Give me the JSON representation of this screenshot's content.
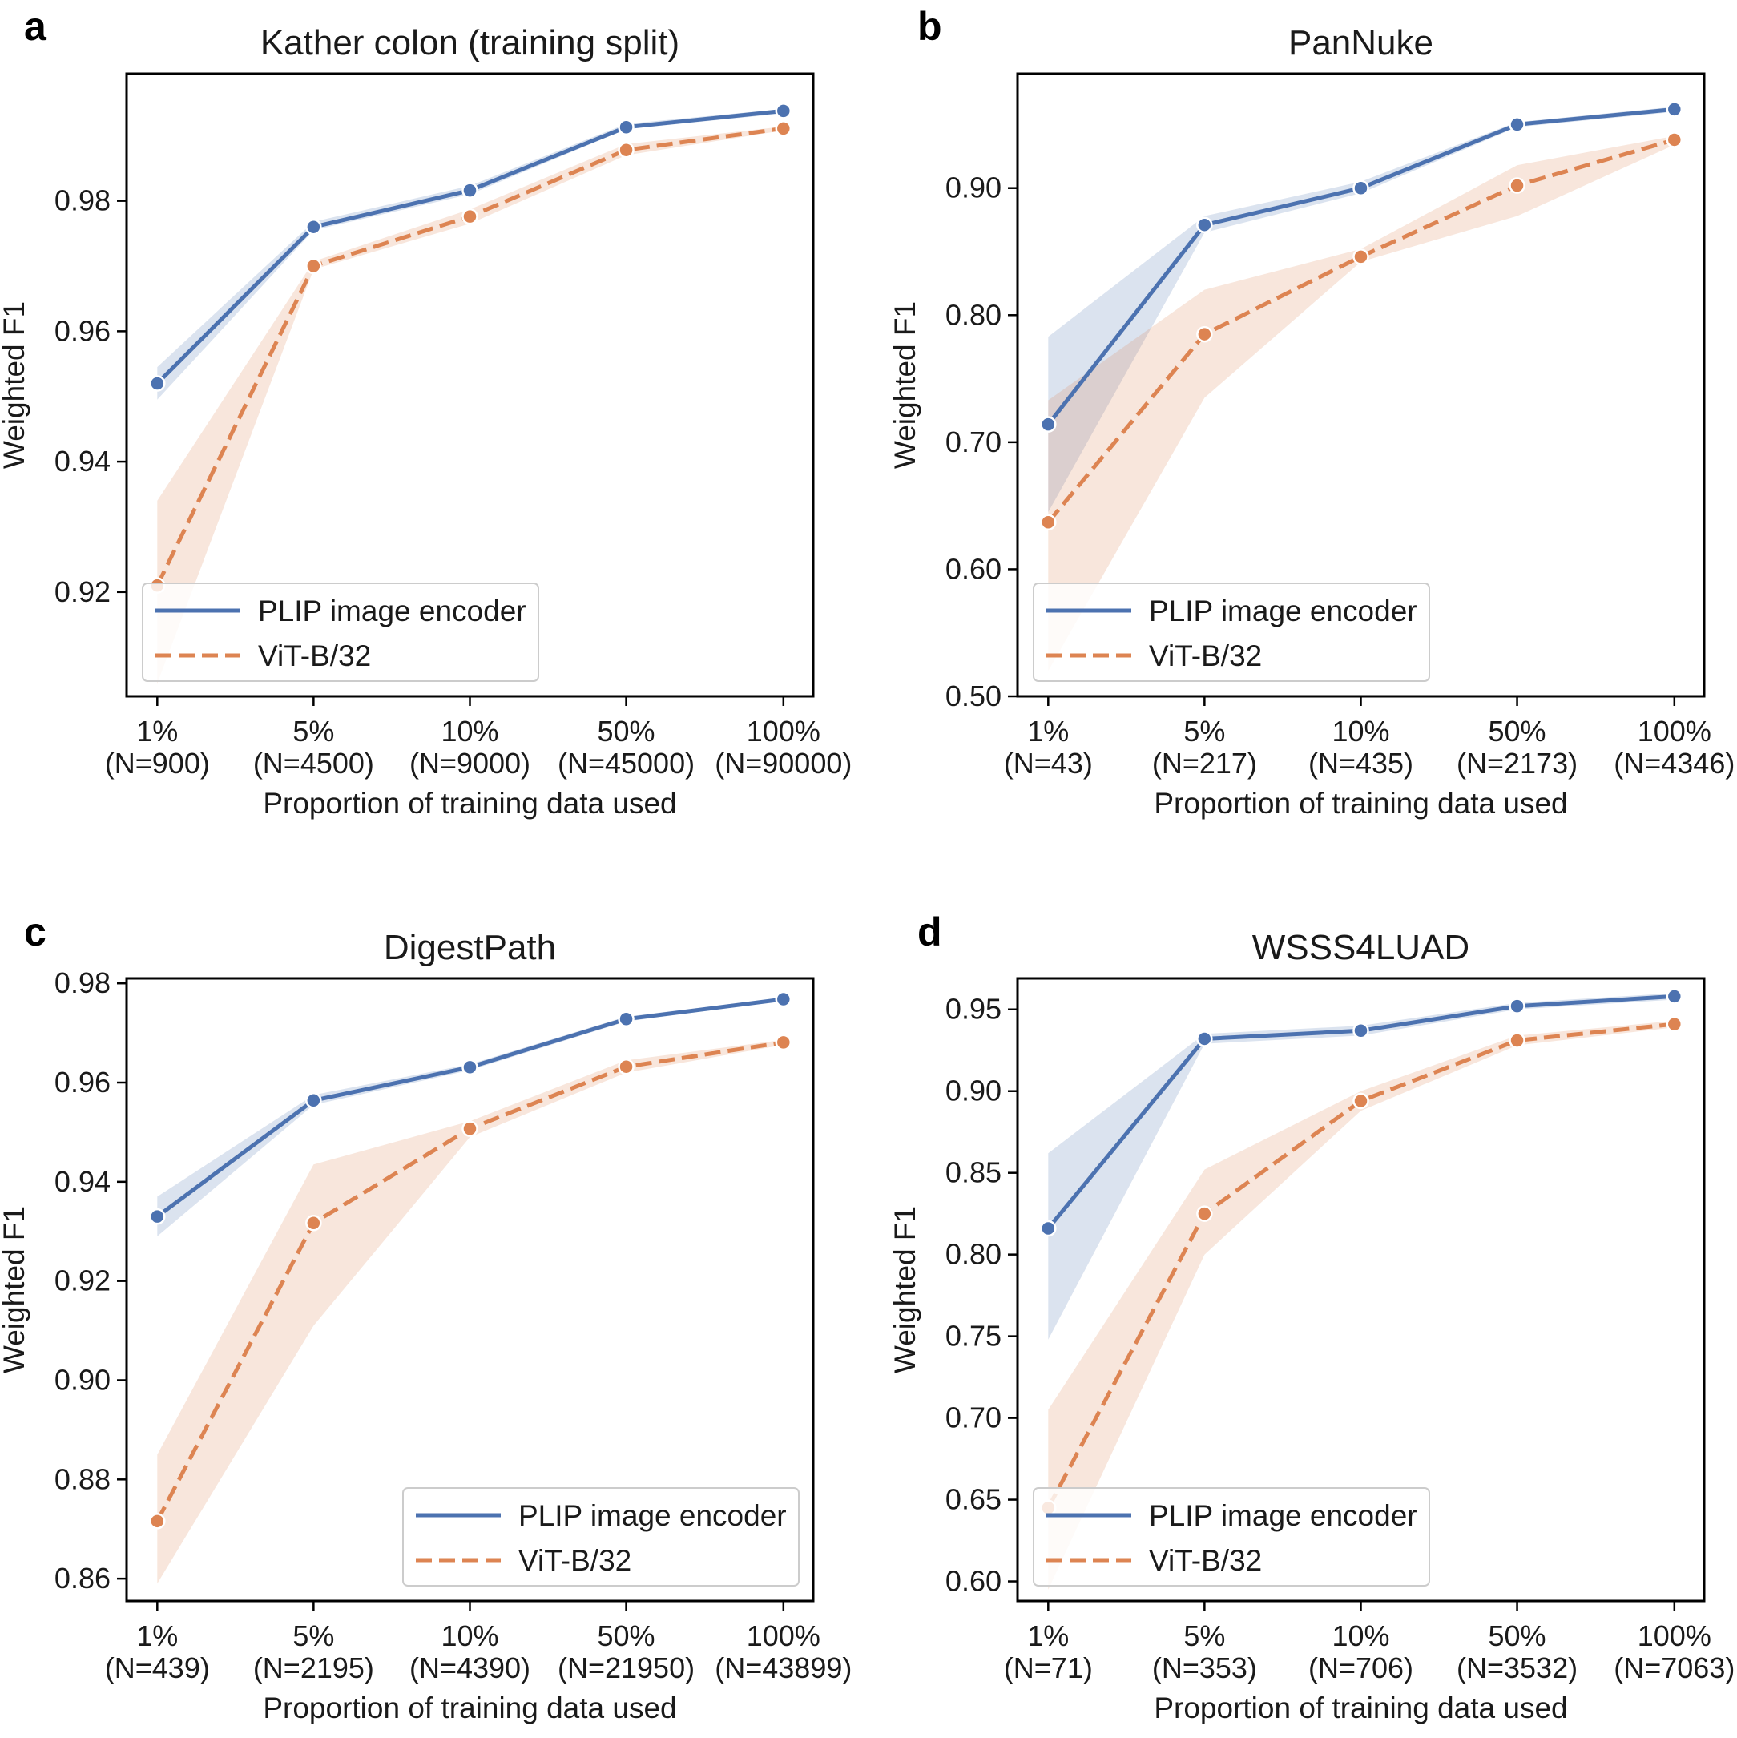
{
  "figure": {
    "legend_labels": [
      "PLIP image encoder",
      "ViT-B/32"
    ]
  },
  "chart_data": [
    {
      "type": "line",
      "panel": "a",
      "title": "Kather colon (training split)",
      "xlabel": "Proportion of training data used",
      "ylabel": "Weighted F1",
      "categories": [
        "1%",
        "5%",
        "10%",
        "50%",
        "100%"
      ],
      "category_counts": [
        "(N=900)",
        "(N=4500)",
        "(N=9000)",
        "(N=45000)",
        "(N=90000)"
      ],
      "ylim": [
        0.904,
        0.9995
      ],
      "yticks": [
        0.92,
        0.94,
        0.96,
        0.98
      ],
      "ytick_labels": [
        "0.92",
        "0.94",
        "0.96",
        "0.98"
      ],
      "legend_position": "lower-left",
      "series": [
        {
          "name": "PLIP image encoder",
          "color": "#4c72b0",
          "dashed": false,
          "values": [
            0.952,
            0.976,
            0.9816,
            0.9913,
            0.9938
          ],
          "lower": [
            0.9495,
            0.9755,
            0.981,
            0.991,
            0.9934
          ],
          "upper": [
            0.9545,
            0.9768,
            0.9823,
            0.9918,
            0.9941
          ]
        },
        {
          "name": "ViT-B/32",
          "color": "#dd8452",
          "dashed": true,
          "values": [
            0.921,
            0.97,
            0.9776,
            0.9878,
            0.9911
          ],
          "lower": [
            0.906,
            0.9695,
            0.9765,
            0.987,
            0.9908
          ],
          "upper": [
            0.934,
            0.9707,
            0.9787,
            0.9887,
            0.9914
          ]
        }
      ]
    },
    {
      "type": "line",
      "panel": "b",
      "title": "PanNuke",
      "xlabel": "Proportion of training data used",
      "ylabel": "Weighted F1",
      "categories": [
        "1%",
        "5%",
        "10%",
        "50%",
        "100%"
      ],
      "category_counts": [
        "(N=43)",
        "(N=217)",
        "(N=435)",
        "(N=2173)",
        "(N=4346)"
      ],
      "ylim": [
        0.5,
        0.99
      ],
      "yticks": [
        0.5,
        0.6,
        0.7,
        0.8,
        0.9
      ],
      "ytick_labels": [
        "0.50",
        "0.60",
        "0.70",
        "0.80",
        "0.90"
      ],
      "legend_position": "lower-left",
      "series": [
        {
          "name": "PLIP image encoder",
          "color": "#4c72b0",
          "dashed": false,
          "values": [
            0.714,
            0.871,
            0.9,
            0.95,
            0.962
          ],
          "lower": [
            0.645,
            0.865,
            0.896,
            0.948,
            0.96
          ],
          "upper": [
            0.783,
            0.878,
            0.905,
            0.952,
            0.964
          ]
        },
        {
          "name": "ViT-B/32",
          "color": "#dd8452",
          "dashed": true,
          "values": [
            0.637,
            0.785,
            0.846,
            0.902,
            0.938
          ],
          "lower": [
            0.52,
            0.735,
            0.842,
            0.878,
            0.934
          ],
          "upper": [
            0.733,
            0.82,
            0.852,
            0.918,
            0.941
          ]
        }
      ]
    },
    {
      "type": "line",
      "panel": "c",
      "title": "DigestPath",
      "xlabel": "Proportion of training data used",
      "ylabel": "Weighted F1",
      "categories": [
        "1%",
        "5%",
        "10%",
        "50%",
        "100%"
      ],
      "category_counts": [
        "(N=439)",
        "(N=2195)",
        "(N=4390)",
        "(N=21950)",
        "(N=43899)"
      ],
      "ylim": [
        0.8555,
        0.981
      ],
      "yticks": [
        0.86,
        0.88,
        0.9,
        0.92,
        0.94,
        0.96,
        0.98
      ],
      "ytick_labels": [
        "0.86",
        "0.88",
        "0.90",
        "0.92",
        "0.94",
        "0.96",
        "0.98"
      ],
      "legend_position": "lower-right",
      "series": [
        {
          "name": "PLIP image encoder",
          "color": "#4c72b0",
          "dashed": false,
          "values": [
            0.933,
            0.9564,
            0.9631,
            0.9728,
            0.9768
          ],
          "lower": [
            0.929,
            0.9555,
            0.9625,
            0.9723,
            0.9765
          ],
          "upper": [
            0.937,
            0.9575,
            0.9637,
            0.9733,
            0.9771
          ]
        },
        {
          "name": "ViT-B/32",
          "color": "#dd8452",
          "dashed": true,
          "values": [
            0.8716,
            0.9317,
            0.9507,
            0.9632,
            0.9681
          ],
          "lower": [
            0.859,
            0.911,
            0.949,
            0.962,
            0.9676
          ],
          "upper": [
            0.885,
            0.9435,
            0.9522,
            0.9645,
            0.9686
          ]
        }
      ]
    },
    {
      "type": "line",
      "panel": "d",
      "title": "WSSS4LUAD",
      "xlabel": "Proportion of training data used",
      "ylabel": "Weighted F1",
      "categories": [
        "1%",
        "5%",
        "10%",
        "50%",
        "100%"
      ],
      "category_counts": [
        "(N=71)",
        "(N=353)",
        "(N=706)",
        "(N=3532)",
        "(N=7063)"
      ],
      "ylim": [
        0.588,
        0.969
      ],
      "yticks": [
        0.6,
        0.65,
        0.7,
        0.75,
        0.8,
        0.85,
        0.9,
        0.95
      ],
      "ytick_labels": [
        "0.60",
        "0.65",
        "0.70",
        "0.75",
        "0.80",
        "0.85",
        "0.90",
        "0.95"
      ],
      "legend_position": "lower-left",
      "series": [
        {
          "name": "PLIP image encoder",
          "color": "#4c72b0",
          "dashed": false,
          "values": [
            0.816,
            0.932,
            0.937,
            0.952,
            0.958
          ],
          "lower": [
            0.748,
            0.929,
            0.934,
            0.95,
            0.956
          ],
          "upper": [
            0.862,
            0.935,
            0.94,
            0.954,
            0.96
          ]
        },
        {
          "name": "ViT-B/32",
          "color": "#dd8452",
          "dashed": true,
          "values": [
            0.645,
            0.825,
            0.894,
            0.931,
            0.941
          ],
          "lower": [
            0.595,
            0.8,
            0.888,
            0.928,
            0.939
          ],
          "upper": [
            0.705,
            0.852,
            0.9,
            0.934,
            0.943
          ]
        }
      ]
    }
  ]
}
